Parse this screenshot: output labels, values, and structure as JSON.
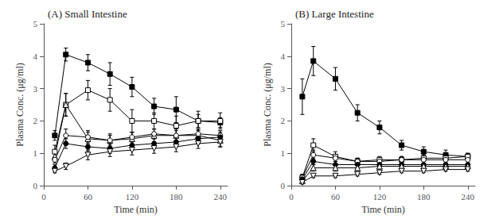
{
  "chart_data": [
    {
      "type": "line",
      "title": "(A) Small Intestine",
      "x_label": "Time (min)",
      "y_label": "Plasma Conc. (μg/ml)",
      "x": [
        15,
        30,
        60,
        90,
        120,
        150,
        180,
        210,
        240
      ],
      "xlim": [
        0,
        250
      ],
      "ylim": [
        0,
        5
      ],
      "xticks": [
        0,
        60,
        120,
        180,
        240
      ],
      "yticks": [
        0,
        1,
        2,
        3,
        4,
        5
      ],
      "grid": false,
      "series": [
        {
          "marker": "filled_square",
          "color": "#000000",
          "values": [
            1.55,
            4.05,
            3.8,
            3.45,
            3.05,
            2.45,
            2.35,
            2.0,
            1.95
          ],
          "yerr": [
            0.15,
            0.2,
            0.25,
            0.35,
            0.3,
            0.25,
            0.4,
            0.2,
            0.15
          ]
        },
        {
          "marker": "open_square",
          "color": "#000000",
          "values": [
            1.05,
            2.5,
            2.95,
            2.65,
            2.0,
            2.0,
            1.85,
            2.0,
            2.0
          ],
          "yerr": [
            0.2,
            0.35,
            0.3,
            0.35,
            0.35,
            0.25,
            0.3,
            0.3,
            0.25
          ]
        },
        {
          "marker": "open_triangle_up",
          "color": "#000000",
          "values": [
            0.9,
            2.5,
            1.45,
            1.4,
            1.45,
            1.55,
            1.55,
            1.55,
            1.4
          ],
          "yerr": [
            0.15,
            0.35,
            0.2,
            0.2,
            0.2,
            0.2,
            0.2,
            0.2,
            0.2
          ]
        },
        {
          "marker": "open_circle",
          "color": "#000000",
          "values": [
            0.8,
            1.55,
            1.5,
            1.4,
            1.5,
            1.6,
            1.55,
            1.6,
            1.55
          ],
          "yerr": [
            0.1,
            0.2,
            0.2,
            0.15,
            0.15,
            0.15,
            0.15,
            0.15,
            0.15
          ]
        },
        {
          "marker": "filled_circle",
          "color": "#000000",
          "values": [
            0.55,
            1.3,
            1.2,
            1.15,
            1.25,
            1.3,
            1.35,
            1.45,
            1.5
          ],
          "yerr": [
            0.1,
            0.15,
            0.15,
            0.15,
            0.15,
            0.15,
            0.15,
            0.15,
            0.15
          ]
        },
        {
          "marker": "open_triangle_down",
          "color": "#000000",
          "values": [
            0.45,
            0.6,
            0.95,
            1.05,
            1.1,
            1.15,
            1.2,
            1.3,
            1.35
          ],
          "yerr": [
            0.05,
            0.1,
            0.15,
            0.15,
            0.15,
            0.15,
            0.15,
            0.15,
            0.15
          ]
        }
      ]
    },
    {
      "type": "line",
      "title": "(B) Large Intestine",
      "x_label": "Time (min)",
      "y_label": "Plasma Conc. (μg/ml)",
      "x": [
        15,
        30,
        60,
        90,
        120,
        150,
        180,
        210,
        240
      ],
      "xlim": [
        0,
        250
      ],
      "ylim": [
        0,
        5
      ],
      "xticks": [
        0,
        60,
        120,
        180,
        240
      ],
      "yticks": [
        0,
        1,
        2,
        3,
        4,
        5
      ],
      "grid": false,
      "series": [
        {
          "marker": "filled_square",
          "color": "#000000",
          "values": [
            2.75,
            3.85,
            3.3,
            2.25,
            1.8,
            1.25,
            1.05,
            0.95,
            0.9
          ],
          "yerr": [
            0.55,
            0.45,
            0.35,
            0.25,
            0.2,
            0.15,
            0.15,
            0.15,
            0.1
          ]
        },
        {
          "marker": "open_square",
          "color": "#000000",
          "values": [
            0.25,
            1.25,
            0.9,
            0.75,
            0.8,
            0.8,
            0.85,
            0.85,
            0.9
          ],
          "yerr": [
            0.1,
            0.2,
            0.15,
            0.1,
            0.1,
            0.1,
            0.1,
            0.1,
            0.1
          ]
        },
        {
          "marker": "open_circle",
          "color": "#000000",
          "values": [
            0.25,
            0.95,
            0.85,
            0.75,
            0.75,
            0.8,
            0.8,
            0.8,
            0.8
          ],
          "yerr": [
            0.1,
            0.15,
            0.1,
            0.1,
            0.1,
            0.1,
            0.1,
            0.1,
            0.1
          ]
        },
        {
          "marker": "filled_circle",
          "color": "#000000",
          "values": [
            0.2,
            0.75,
            0.65,
            0.65,
            0.65,
            0.65,
            0.65,
            0.65,
            0.65
          ],
          "yerr": [
            0.05,
            0.1,
            0.1,
            0.1,
            0.1,
            0.1,
            0.1,
            0.1,
            0.1
          ]
        },
        {
          "marker": "open_triangle_up",
          "color": "#000000",
          "values": [
            0.15,
            0.55,
            0.55,
            0.55,
            0.6,
            0.6,
            0.6,
            0.6,
            0.6
          ],
          "yerr": [
            0.05,
            0.1,
            0.1,
            0.08,
            0.08,
            0.08,
            0.08,
            0.08,
            0.08
          ]
        },
        {
          "marker": "open_triangle_down",
          "color": "#000000",
          "values": [
            0.1,
            0.3,
            0.3,
            0.35,
            0.4,
            0.45,
            0.45,
            0.5,
            0.5
          ],
          "yerr": [
            0.05,
            0.05,
            0.05,
            0.05,
            0.05,
            0.05,
            0.05,
            0.05,
            0.05
          ]
        }
      ]
    }
  ]
}
